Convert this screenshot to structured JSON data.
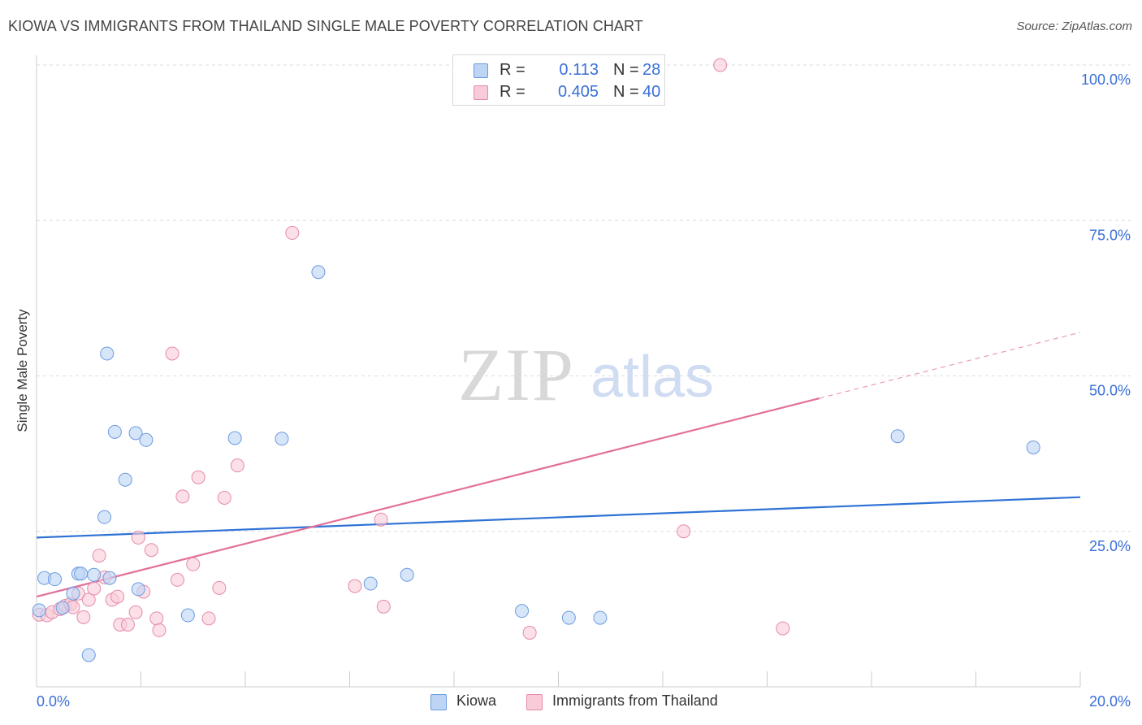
{
  "header": {
    "title": "KIOWA VS IMMIGRANTS FROM THAILAND SINGLE MALE POVERTY CORRELATION CHART",
    "source": "Source: ZipAtlas.com"
  },
  "watermark": {
    "zip": "ZIP",
    "atlas": "atlas"
  },
  "legend_top": {
    "rows": [
      {
        "r_key": "R =",
        "r_value": "0.113",
        "n_key": "N =",
        "n_value": "28"
      },
      {
        "r_key": "R =",
        "r_value": "0.405",
        "n_key": "N =",
        "n_value": "40"
      }
    ]
  },
  "legend_bottom": {
    "items": [
      "Kiowa",
      "Immigrants from Thailand"
    ]
  },
  "colors": {
    "kiowa_fill": "#bdd4f5",
    "kiowa_stroke": "#6a9be0",
    "kiowa_line": "#2f72d6",
    "thailand_fill": "#f9cbd9",
    "thailand_stroke": "#e68aa8",
    "thailand_line": "#e2709a",
    "tick_label": "#3a6fd8",
    "grid": "#dddddd"
  },
  "chart_data": {
    "type": "scatter",
    "title": "KIOWA VS IMMIGRANTS FROM THAILAND SINGLE MALE POVERTY CORRELATION CHART",
    "xlabel": "",
    "ylabel": "Single Male Poverty",
    "xlim": [
      0,
      20
    ],
    "ylim": [
      0,
      100
    ],
    "x_tick_labels": [
      "0.0%",
      "20.0%"
    ],
    "y_tick_labels": [
      "100.0%",
      "75.0%",
      "50.0%",
      "25.0%"
    ],
    "y_ticks": [
      100,
      75,
      50,
      25
    ],
    "grid": true,
    "legend": "bottom-center",
    "series": [
      {
        "name": "Kiowa",
        "r": 0.113,
        "n": 28,
        "points": [
          [
            0.15,
            17.5
          ],
          [
            0.35,
            17.3
          ],
          [
            0.8,
            18.2
          ],
          [
            0.85,
            18.2
          ],
          [
            1.1,
            18.0
          ],
          [
            0.5,
            12.7
          ],
          [
            0.7,
            15.0
          ],
          [
            0.05,
            12.3
          ],
          [
            1.4,
            17.5
          ],
          [
            1.3,
            27.3
          ],
          [
            1.35,
            53.6
          ],
          [
            1.5,
            41.0
          ],
          [
            1.7,
            33.3
          ],
          [
            1.9,
            40.8
          ],
          [
            2.1,
            39.7
          ],
          [
            1.95,
            15.7
          ],
          [
            2.9,
            11.5
          ],
          [
            3.8,
            40.0
          ],
          [
            4.7,
            39.9
          ],
          [
            5.4,
            66.7
          ],
          [
            6.4,
            16.6
          ],
          [
            7.1,
            18.0
          ],
          [
            9.3,
            12.2
          ],
          [
            10.2,
            11.1
          ],
          [
            10.8,
            11.1
          ],
          [
            16.5,
            40.3
          ],
          [
            19.1,
            38.5
          ],
          [
            1.0,
            5.1
          ]
        ],
        "trend": {
          "x": [
            0,
            20
          ],
          "y": [
            24.0,
            30.5
          ]
        }
      },
      {
        "name": "Immigrants from Thailand",
        "r": 0.405,
        "n": 40,
        "points": [
          [
            0.05,
            11.6
          ],
          [
            0.2,
            11.5
          ],
          [
            0.3,
            12.0
          ],
          [
            0.45,
            12.5
          ],
          [
            0.55,
            13.0
          ],
          [
            0.65,
            13.3
          ],
          [
            0.7,
            12.8
          ],
          [
            0.8,
            15.0
          ],
          [
            0.9,
            11.2
          ],
          [
            1.0,
            14.0
          ],
          [
            1.1,
            15.8
          ],
          [
            1.2,
            21.1
          ],
          [
            1.3,
            17.6
          ],
          [
            1.45,
            14.0
          ],
          [
            1.55,
            14.5
          ],
          [
            1.6,
            10.0
          ],
          [
            1.75,
            10.0
          ],
          [
            1.9,
            12.0
          ],
          [
            1.95,
            24.0
          ],
          [
            2.05,
            15.3
          ],
          [
            2.2,
            22.0
          ],
          [
            2.3,
            11.0
          ],
          [
            2.35,
            9.1
          ],
          [
            2.6,
            53.6
          ],
          [
            2.7,
            17.2
          ],
          [
            2.8,
            30.6
          ],
          [
            3.0,
            19.7
          ],
          [
            3.1,
            33.7
          ],
          [
            3.3,
            11.0
          ],
          [
            3.5,
            15.9
          ],
          [
            3.6,
            30.4
          ],
          [
            3.85,
            35.6
          ],
          [
            4.9,
            73.0
          ],
          [
            6.1,
            16.2
          ],
          [
            6.6,
            26.9
          ],
          [
            6.65,
            12.9
          ],
          [
            9.45,
            8.7
          ],
          [
            12.4,
            25.0
          ],
          [
            13.1,
            100.0
          ],
          [
            14.3,
            9.4
          ]
        ],
        "trend": {
          "x": [
            0,
            15
          ],
          "y": [
            14.5,
            46.4
          ]
        },
        "trend_extension": {
          "x": [
            15,
            20
          ],
          "y": [
            46.4,
            57.0
          ]
        }
      }
    ]
  }
}
